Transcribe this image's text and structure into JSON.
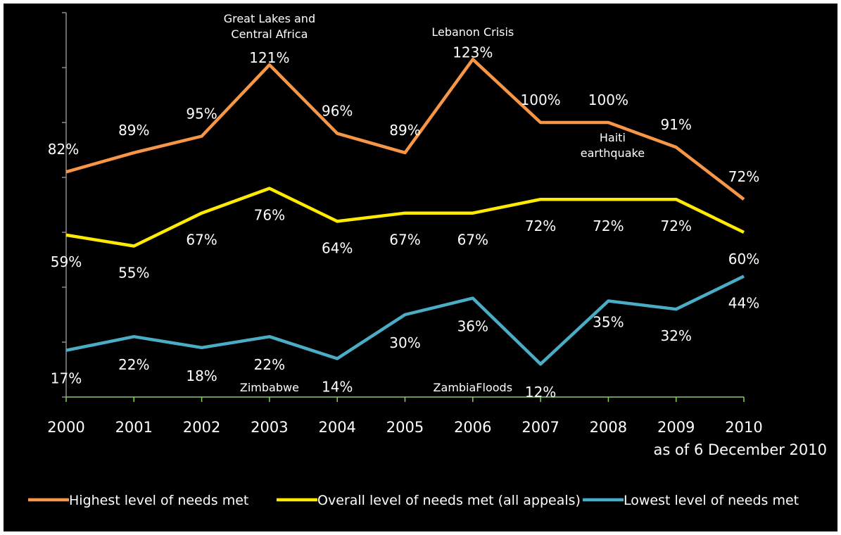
{
  "colors": {
    "background": "#000000",
    "text": "#ffffff",
    "axis_left": "#8c8c8c",
    "axis_bottom": "#92c86a"
  },
  "chart_data": {
    "type": "line",
    "x": [
      "2000",
      "2001",
      "2002",
      "2003",
      "2004",
      "2005",
      "2006",
      "2007",
      "2008",
      "2009",
      "2010"
    ],
    "x_note": "as of 6 December 2010",
    "ylim": [
      0,
      140
    ],
    "y_tick_step": 20,
    "y_tick_labels_shown": false,
    "grid": false,
    "legend_position": "bottom",
    "series": [
      {
        "name": "Highest level of needs met",
        "color": "#f79646",
        "values": [
          82,
          89,
          95,
          121,
          96,
          89,
          123,
          100,
          100,
          91,
          72
        ],
        "labels": [
          "82%",
          "89%",
          "95%",
          "121%",
          "96%",
          "89%",
          "123%",
          "100%",
          "100%",
          "91%",
          "72%"
        ]
      },
      {
        "name": "Overall level of needs met (all appeals)",
        "color": "#ffeb00",
        "values": [
          59,
          55,
          67,
          76,
          64,
          67,
          67,
          72,
          72,
          72,
          60
        ],
        "labels": [
          "59%",
          "55%",
          "67%",
          "76%",
          "64%",
          "67%",
          "67%",
          "72%",
          "72%",
          "72%",
          "60%"
        ]
      },
      {
        "name": "Lowest level of needs met",
        "color": "#4bacc6",
        "values": [
          17,
          22,
          18,
          22,
          14,
          30,
          36,
          12,
          35,
          32,
          44
        ],
        "labels": [
          "17%",
          "22%",
          "18%",
          "22%",
          "14%",
          "30%",
          "36%",
          "12%",
          "35%",
          "32%",
          "44%"
        ]
      }
    ],
    "annotations": [
      {
        "lines": [
          "Great Lakes and",
          "Central Africa"
        ],
        "series": 0,
        "x": "2003"
      },
      {
        "lines": [
          "Lebanon Crisis"
        ],
        "series": 0,
        "x": "2006"
      },
      {
        "lines": [
          "Haiti",
          "earthquake"
        ],
        "series": 0,
        "x": "2008"
      },
      {
        "lines": [
          "Zimbabwe"
        ],
        "series": 2,
        "x": "2003"
      },
      {
        "lines": [
          "ZambiaFloods"
        ],
        "series": 2,
        "x": "2006"
      }
    ]
  }
}
